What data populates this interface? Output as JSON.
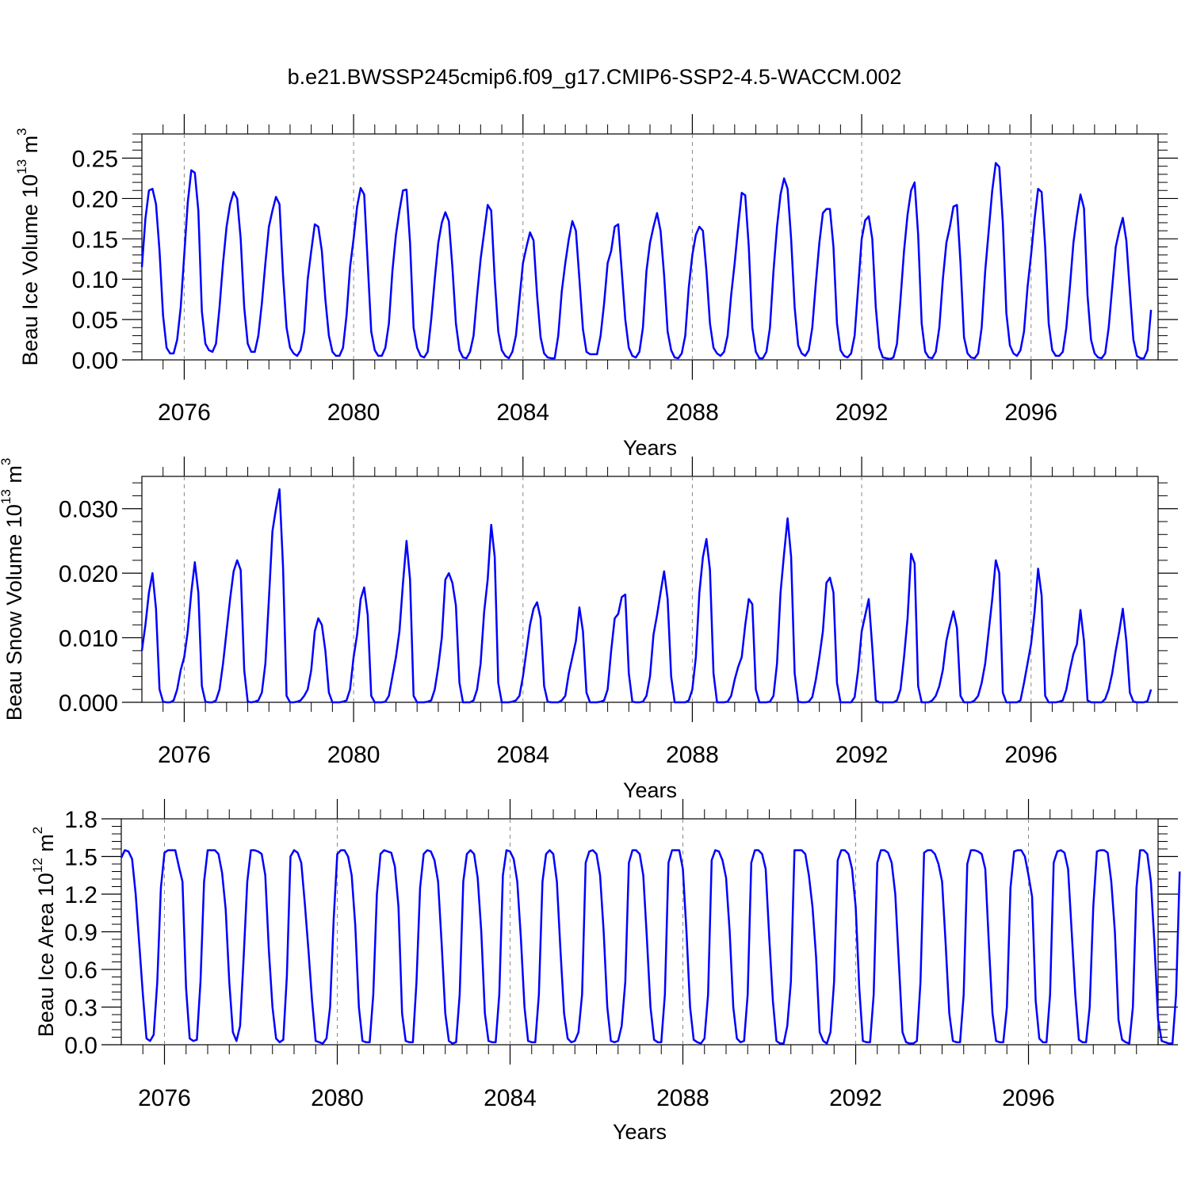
{
  "title": "b.e21.BWSSP245cmip6.f09_g17.CMIP6-SSP2-4.5-WACCM.002",
  "chart_data": [
    {
      "type": "line",
      "title": "",
      "xlabel": "Years",
      "ylabel": {
        "main": "Beau Ice Volume 10",
        "sup": "13",
        "after": " m",
        "sup2": "3"
      },
      "xlim": [
        2075.0,
        2099.0
      ],
      "ylim": [
        0.0,
        0.28
      ],
      "x_ticks": [
        2076,
        2080,
        2084,
        2088,
        2092,
        2096
      ],
      "x_tick_labels": [
        "2076",
        "2080",
        "2084",
        "2088",
        "2092",
        "2096"
      ],
      "y_ticks": [
        0.0,
        0.05,
        0.1,
        0.15,
        0.2,
        0.25
      ],
      "y_tick_labels": [
        "0.00",
        "0.05",
        "0.10",
        "0.15",
        "0.20",
        "0.25"
      ],
      "series": [
        {
          "color": "#0000ff",
          "start_year": 2075,
          "values": [
            0.115,
            0.175,
            0.21,
            0.212,
            0.193,
            0.135,
            0.055,
            0.015,
            0.008,
            0.008,
            0.025,
            0.065,
            0.13,
            0.195,
            0.235,
            0.232,
            0.185,
            0.06,
            0.02,
            0.012,
            0.01,
            0.02,
            0.065,
            0.12,
            0.165,
            0.193,
            0.208,
            0.2,
            0.15,
            0.065,
            0.02,
            0.01,
            0.01,
            0.03,
            0.07,
            0.12,
            0.165,
            0.185,
            0.202,
            0.193,
            0.105,
            0.04,
            0.015,
            0.008,
            0.005,
            0.012,
            0.035,
            0.1,
            0.135,
            0.168,
            0.165,
            0.135,
            0.075,
            0.03,
            0.01,
            0.005,
            0.005,
            0.015,
            0.055,
            0.115,
            0.15,
            0.19,
            0.213,
            0.205,
            0.12,
            0.035,
            0.012,
            0.005,
            0.005,
            0.015,
            0.045,
            0.11,
            0.155,
            0.185,
            0.21,
            0.211,
            0.145,
            0.04,
            0.015,
            0.005,
            0.003,
            0.01,
            0.05,
            0.1,
            0.145,
            0.17,
            0.183,
            0.172,
            0.115,
            0.045,
            0.012,
            0.003,
            0.002,
            0.01,
            0.03,
            0.08,
            0.125,
            0.158,
            0.192,
            0.185,
            0.1,
            0.035,
            0.012,
            0.005,
            0.002,
            0.01,
            0.03,
            0.075,
            0.12,
            0.14,
            0.158,
            0.148,
            0.08,
            0.028,
            0.008,
            0.003,
            0.002,
            0.002,
            0.03,
            0.085,
            0.12,
            0.15,
            0.172,
            0.16,
            0.1,
            0.038,
            0.01,
            0.007,
            0.007,
            0.007,
            0.03,
            0.07,
            0.12,
            0.135,
            0.165,
            0.168,
            0.11,
            0.05,
            0.015,
            0.005,
            0.003,
            0.01,
            0.04,
            0.11,
            0.145,
            0.165,
            0.182,
            0.16,
            0.105,
            0.035,
            0.012,
            0.003,
            0.002,
            0.008,
            0.03,
            0.09,
            0.13,
            0.155,
            0.165,
            0.16,
            0.11,
            0.045,
            0.015,
            0.008,
            0.005,
            0.01,
            0.03,
            0.08,
            0.12,
            0.165,
            0.207,
            0.204,
            0.14,
            0.04,
            0.01,
            0.002,
            0.002,
            0.01,
            0.04,
            0.11,
            0.165,
            0.205,
            0.225,
            0.212,
            0.15,
            0.065,
            0.018,
            0.008,
            0.005,
            0.012,
            0.04,
            0.095,
            0.145,
            0.182,
            0.187,
            0.187,
            0.14,
            0.045,
            0.012,
            0.005,
            0.003,
            0.008,
            0.03,
            0.09,
            0.15,
            0.173,
            0.178,
            0.15,
            0.065,
            0.015,
            0.003,
            0.002,
            0.001,
            0.003,
            0.02,
            0.075,
            0.135,
            0.18,
            0.21,
            0.22,
            0.155,
            0.045,
            0.01,
            0.003,
            0.002,
            0.01,
            0.04,
            0.1,
            0.145,
            0.165,
            0.19,
            0.192,
            0.12,
            0.028,
            0.008,
            0.003,
            0.002,
            0.008,
            0.04,
            0.11,
            0.16,
            0.21,
            0.244,
            0.239,
            0.17,
            0.058,
            0.018,
            0.008,
            0.005,
            0.012,
            0.035,
            0.09,
            0.13,
            0.175,
            0.212,
            0.208,
            0.14,
            0.045,
            0.012,
            0.005,
            0.005,
            0.01,
            0.04,
            0.09,
            0.145,
            0.178,
            0.205,
            0.188,
            0.08,
            0.025,
            0.008,
            0.003,
            0.002,
            0.008,
            0.04,
            0.09,
            0.14,
            0.16,
            0.176,
            0.148,
            0.085,
            0.025,
            0.005,
            0.002,
            0.002,
            0.012,
            0.062
          ]
        }
      ]
    },
    {
      "type": "line",
      "title": "",
      "xlabel": "Years",
      "ylabel": {
        "main": "Beau Snow Volume 10",
        "sup": "13",
        "after": " m",
        "sup2": "3"
      },
      "xlim": [
        2075.0,
        2099.0
      ],
      "ylim": [
        0.0,
        0.035
      ],
      "x_ticks": [
        2076,
        2080,
        2084,
        2088,
        2092,
        2096
      ],
      "x_tick_labels": [
        "2076",
        "2080",
        "2084",
        "2088",
        "2092",
        "2096"
      ],
      "y_ticks": [
        0.0,
        0.01,
        0.02,
        0.03
      ],
      "y_tick_labels": [
        "0.000",
        "0.010",
        "0.020",
        "0.030"
      ],
      "series": [
        {
          "color": "#0000ff",
          "start_year": 2075,
          "values": [
            0.008,
            0.012,
            0.017,
            0.02,
            0.0145,
            0.002,
            0.0001,
            0.0,
            0.0,
            0.0003,
            0.002,
            0.005,
            0.007,
            0.011,
            0.017,
            0.0217,
            0.017,
            0.0025,
            0.0001,
            0.0,
            0.0,
            0.0003,
            0.002,
            0.006,
            0.011,
            0.016,
            0.0203,
            0.022,
            0.0205,
            0.005,
            0.0001,
            0.0,
            0.0001,
            0.0003,
            0.0015,
            0.006,
            0.016,
            0.0265,
            0.03,
            0.033,
            0.021,
            0.001,
            0.0,
            0.0,
            0.0001,
            0.0003,
            0.001,
            0.002,
            0.005,
            0.011,
            0.013,
            0.012,
            0.008,
            0.0015,
            0.0,
            0.0,
            0.0,
            0.0001,
            0.0003,
            0.002,
            0.007,
            0.0105,
            0.016,
            0.0178,
            0.0135,
            0.001,
            0.0,
            0.0,
            0.0,
            0.0001,
            0.001,
            0.004,
            0.007,
            0.011,
            0.0185,
            0.025,
            0.019,
            0.001,
            0.0,
            0.0,
            0.0,
            0.0001,
            0.0003,
            0.002,
            0.0055,
            0.01,
            0.019,
            0.02,
            0.0185,
            0.015,
            0.003,
            0.0,
            0.0,
            0.0,
            0.0003,
            0.002,
            0.006,
            0.014,
            0.019,
            0.0275,
            0.0225,
            0.003,
            0.0,
            0.0,
            0.0,
            0.0001,
            0.0003,
            0.001,
            0.004,
            0.008,
            0.012,
            0.0145,
            0.0155,
            0.013,
            0.0025,
            0.0001,
            0.0,
            0.0,
            0.0,
            0.0003,
            0.001,
            0.0045,
            0.007,
            0.0095,
            0.0147,
            0.011,
            0.0015,
            0.0,
            0.0,
            0.0,
            0.0001,
            0.0003,
            0.002,
            0.008,
            0.013,
            0.0137,
            0.0163,
            0.0167,
            0.0045,
            0.0001,
            0.0,
            0.0,
            0.0001,
            0.001,
            0.004,
            0.0105,
            0.0135,
            0.017,
            0.0203,
            0.016,
            0.004,
            0.0,
            0.0,
            0.0,
            0.0,
            0.0003,
            0.002,
            0.007,
            0.017,
            0.0225,
            0.0253,
            0.0205,
            0.0045,
            0.0,
            0.0,
            0.0,
            0.0001,
            0.001,
            0.0035,
            0.0055,
            0.007,
            0.012,
            0.016,
            0.0152,
            0.002,
            0.0,
            0.0,
            0.0,
            0.0001,
            0.001,
            0.006,
            0.017,
            0.023,
            0.0285,
            0.0225,
            0.0045,
            0.0001,
            0.0,
            0.0,
            0.0001,
            0.0008,
            0.0035,
            0.007,
            0.011,
            0.0185,
            0.0193,
            0.017,
            0.003,
            0.0,
            0.0,
            0.0,
            0.0,
            0.0008,
            0.005,
            0.011,
            0.0135,
            0.016,
            0.0085,
            0.0003,
            0.0,
            0.0,
            0.0,
            0.0,
            0.0,
            0.0003,
            0.002,
            0.007,
            0.013,
            0.023,
            0.0215,
            0.0025,
            0.0,
            0.0,
            0.0,
            0.0003,
            0.001,
            0.0025,
            0.005,
            0.0095,
            0.012,
            0.0141,
            0.0115,
            0.001,
            0.0,
            0.0,
            0.0,
            0.0003,
            0.001,
            0.003,
            0.006,
            0.011,
            0.016,
            0.022,
            0.02,
            0.0015,
            0.0,
            0.0,
            0.0,
            0.0,
            0.0003,
            0.003,
            0.006,
            0.009,
            0.014,
            0.0207,
            0.0165,
            0.001,
            0.0,
            0.0,
            0.0,
            0.0001,
            0.0003,
            0.002,
            0.005,
            0.0075,
            0.009,
            0.0143,
            0.0095,
            0.0003,
            0.0,
            0.0,
            0.0,
            0.0,
            0.0005,
            0.002,
            0.0045,
            0.008,
            0.011,
            0.0145,
            0.0095,
            0.0015,
            0.0001,
            0.0,
            0.0,
            0.0,
            0.0002,
            0.002
          ]
        }
      ]
    },
    {
      "type": "line",
      "title": "",
      "xlabel": "Years",
      "ylabel": {
        "main": "Beau Ice Area 10",
        "sup": "12",
        "after": " m",
        "sup2": "2"
      },
      "xlim": [
        2075.0,
        2099.0
      ],
      "ylim": [
        0.0,
        1.8
      ],
      "x_ticks": [
        2076,
        2080,
        2084,
        2088,
        2092,
        2096
      ],
      "x_tick_labels": [
        "2076",
        "2080",
        "2084",
        "2088",
        "2092",
        "2096"
      ],
      "y_ticks": [
        0.0,
        0.3,
        0.6,
        0.9,
        1.2,
        1.5,
        1.8
      ],
      "y_tick_labels": [
        "0.0",
        "0.3",
        "0.6",
        "0.9",
        "1.2",
        "1.5",
        "1.8"
      ],
      "series": [
        {
          "color": "#0000ff",
          "start_year": 2075,
          "values": [
            1.49,
            1.55,
            1.54,
            1.48,
            1.2,
            0.8,
            0.4,
            0.05,
            0.03,
            0.08,
            0.5,
            1.25,
            1.53,
            1.55,
            1.55,
            1.55,
            1.42,
            1.3,
            0.45,
            0.05,
            0.03,
            0.04,
            0.5,
            1.3,
            1.55,
            1.55,
            1.55,
            1.52,
            1.37,
            1.08,
            0.5,
            0.1,
            0.03,
            0.15,
            0.7,
            1.3,
            1.55,
            1.55,
            1.54,
            1.52,
            1.35,
            0.75,
            0.3,
            0.05,
            0.02,
            0.04,
            0.55,
            1.5,
            1.55,
            1.53,
            1.45,
            1.12,
            0.75,
            0.35,
            0.03,
            0.02,
            0.01,
            0.05,
            0.3,
            1.0,
            1.52,
            1.55,
            1.55,
            1.5,
            1.35,
            0.95,
            0.3,
            0.03,
            0.02,
            0.02,
            0.4,
            1.2,
            1.52,
            1.55,
            1.54,
            1.53,
            1.42,
            1.1,
            0.25,
            0.03,
            0.02,
            0.02,
            0.5,
            1.25,
            1.52,
            1.55,
            1.54,
            1.47,
            1.3,
            0.8,
            0.25,
            0.03,
            0.01,
            0.02,
            0.4,
            1.3,
            1.52,
            1.55,
            1.52,
            1.33,
            0.9,
            0.25,
            0.03,
            0.02,
            0.02,
            0.4,
            1.35,
            1.55,
            1.54,
            1.48,
            1.3,
            0.85,
            0.3,
            0.03,
            0.02,
            0.02,
            0.4,
            1.3,
            1.52,
            1.55,
            1.52,
            1.3,
            0.75,
            0.25,
            0.05,
            0.02,
            0.03,
            0.1,
            0.4,
            1.45,
            1.54,
            1.55,
            1.52,
            1.35,
            0.9,
            0.3,
            0.03,
            0.02,
            0.03,
            0.15,
            0.5,
            1.45,
            1.55,
            1.55,
            1.52,
            1.35,
            0.85,
            0.3,
            0.04,
            0.02,
            0.02,
            0.4,
            1.45,
            1.55,
            1.55,
            1.55,
            1.4,
            0.9,
            0.3,
            0.04,
            0.02,
            0.01,
            0.05,
            0.4,
            1.47,
            1.55,
            1.54,
            1.47,
            1.33,
            0.9,
            0.3,
            0.05,
            0.02,
            0.03,
            0.4,
            1.45,
            1.55,
            1.55,
            1.52,
            1.4,
            0.85,
            0.35,
            0.03,
            0.01,
            0.01,
            0.15,
            0.5,
            1.55,
            1.55,
            1.55,
            1.52,
            1.35,
            1.1,
            0.7,
            0.1,
            0.03,
            0.01,
            0.1,
            0.5,
            1.47,
            1.55,
            1.55,
            1.52,
            1.4,
            1.1,
            0.45,
            0.03,
            0.02,
            0.02,
            0.4,
            1.45,
            1.55,
            1.55,
            1.53,
            1.45,
            1.2,
            0.65,
            0.1,
            0.02,
            0.01,
            0.01,
            0.03,
            0.5,
            1.53,
            1.55,
            1.55,
            1.52,
            1.44,
            1.3,
            0.8,
            0.25,
            0.03,
            0.02,
            0.02,
            0.4,
            1.44,
            1.55,
            1.55,
            1.54,
            1.52,
            1.4,
            0.8,
            0.25,
            0.03,
            0.02,
            0.02,
            0.3,
            1.25,
            1.54,
            1.55,
            1.55,
            1.5,
            1.35,
            1.18,
            0.35,
            0.05,
            0.02,
            0.02,
            0.4,
            1.45,
            1.54,
            1.55,
            1.53,
            1.4,
            0.9,
            0.4,
            0.04,
            0.02,
            0.02,
            0.3,
            1.1,
            1.54,
            1.55,
            1.55,
            1.53,
            1.3,
            0.9,
            0.2,
            0.04,
            0.02,
            0.01,
            0.3,
            1.25,
            1.55,
            1.55,
            1.52,
            1.3,
            0.8,
            0.2,
            0.03,
            0.02,
            0.01,
            0.01,
            0.4,
            1.38
          ]
        }
      ]
    }
  ]
}
